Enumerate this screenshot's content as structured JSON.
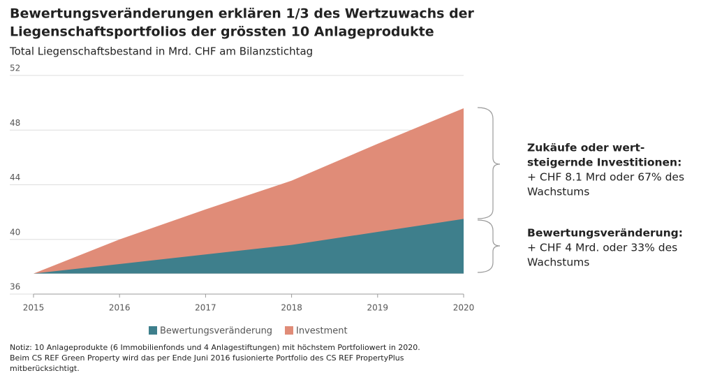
{
  "chart_data": {
    "type": "area",
    "title": [
      "Bewertungsveränderungen erklären 1/3 des Wertzuwachs der",
      "Liegenschaftsportfolios der grössten 10 Anlageprodukte"
    ],
    "subtitle": "Total Liegenschaftsbestand in Mrd. CHF am Bilanzstichtag",
    "x": [
      2015,
      2016,
      2017,
      2018,
      2019,
      2020
    ],
    "xlim": [
      2015,
      2020
    ],
    "xticks": [
      2015,
      2016,
      2017,
      2018,
      2019,
      2020
    ],
    "ylim": [
      36,
      52
    ],
    "yticks": [
      36,
      40,
      44,
      48,
      52
    ],
    "grid": true,
    "series": [
      {
        "name": "Bewertungsveränderung",
        "color": "#3e7f8c",
        "values": [
          37.5,
          38.2,
          38.9,
          39.6,
          40.55,
          41.5
        ]
      },
      {
        "name": "Investment",
        "color": "#e08c78",
        "values": [
          37.5,
          40.0,
          42.2,
          44.3,
          47.0,
          49.6
        ]
      }
    ],
    "annotations": [
      {
        "heading": [
          "Zukäufe oder wert-",
          "steigernde Investitionen:"
        ],
        "text": [
          "+ CHF 8.1 Mrd oder 67% des",
          "Wachstums"
        ]
      },
      {
        "heading": [
          "Bewertungsveränderung:"
        ],
        "text": [
          "+ CHF 4 Mrd. oder 33% des",
          "Wachstums"
        ]
      }
    ],
    "note": [
      "Notiz: 10 Anlageprodukte (6 Immobilienfonds und 4 Anlagestiftungen) mit höchstem Portfoliowert in 2020.",
      "Beim CS REF Green Property wird das per Ende Juni 2016 fusionierte Portfolio des CS REF PropertyPlus",
      "mitberücksichtigt."
    ]
  }
}
